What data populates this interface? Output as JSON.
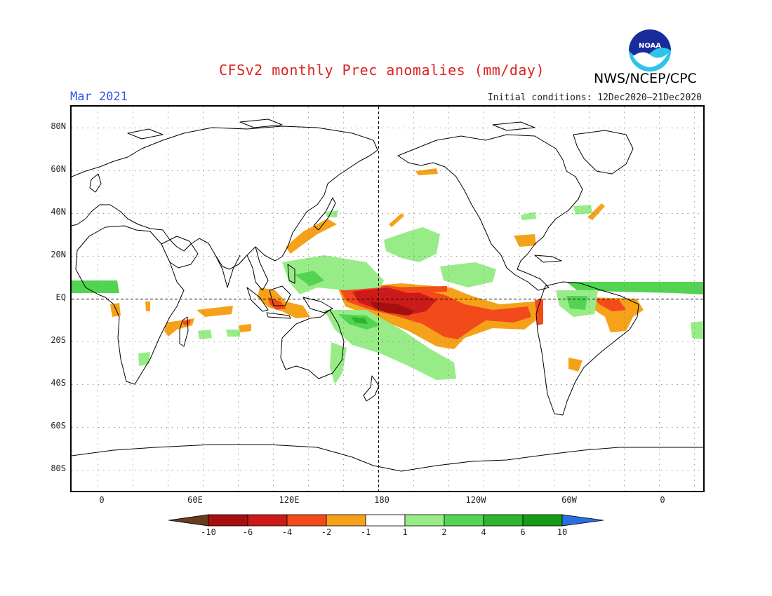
{
  "header": {
    "title": "CFSv2 monthly Prec anomalies (mm/day)",
    "month": "Mar 2021",
    "initial_conditions": "Initial conditions: 12Dec2020–21Dec2020",
    "agency": "NWS/NCEP/CPC",
    "logo_text": "NOAA",
    "logo_icon": "noaa-logo"
  },
  "map": {
    "projection": "equirectangular",
    "lat_labels": [
      "80N",
      "60N",
      "40N",
      "20N",
      "EQ",
      "20S",
      "40S",
      "60S",
      "80S"
    ],
    "lon_labels": [
      "0",
      "60E",
      "120E",
      "180",
      "120W",
      "60W",
      "0"
    ],
    "reference_lines": [
      "equator",
      "dateline"
    ],
    "grid": "dotted"
  },
  "anomalies": [
    {
      "region": "central-equatorial-pacific",
      "sign": "dry",
      "category": "-6 to -10"
    },
    {
      "region": "eastern-equatorial-pacific",
      "sign": "dry",
      "category": "-2 to -4"
    },
    {
      "region": "maritime-continent",
      "sign": "dry",
      "category": "-2 to -4"
    },
    {
      "region": "south-indian-ocean",
      "sign": "dry",
      "category": "-2 to -4"
    },
    {
      "region": "northeast-brazil",
      "sign": "dry",
      "category": "-4 to -6"
    },
    {
      "region": "east-of-japan",
      "sign": "dry",
      "category": "-1 to -2"
    },
    {
      "region": "western-pacific-north-of-equator",
      "sign": "wet",
      "category": "1 to 2"
    },
    {
      "region": "south-pacific-convergence-zone",
      "sign": "wet",
      "category": "1 to 4"
    },
    {
      "region": "equatorial-atlantic",
      "sign": "wet",
      "category": "1 to 4"
    },
    {
      "region": "amazon",
      "sign": "wet",
      "category": "1 to 4"
    },
    {
      "region": "northeast-pacific-subtropics",
      "sign": "wet",
      "category": "1 to 2"
    }
  ],
  "colorbar": {
    "labels": [
      "-10",
      "-6",
      "-4",
      "-2",
      "-1",
      "1",
      "2",
      "4",
      "6",
      "10"
    ],
    "colors": [
      "#6b3a1f",
      "#a50f0f",
      "#cc1a1a",
      "#f24a1a",
      "#f5a21a",
      "#ffffff",
      "#98ec88",
      "#52d452",
      "#2eb42e",
      "#169b16",
      "#2a6fe0"
    ]
  }
}
